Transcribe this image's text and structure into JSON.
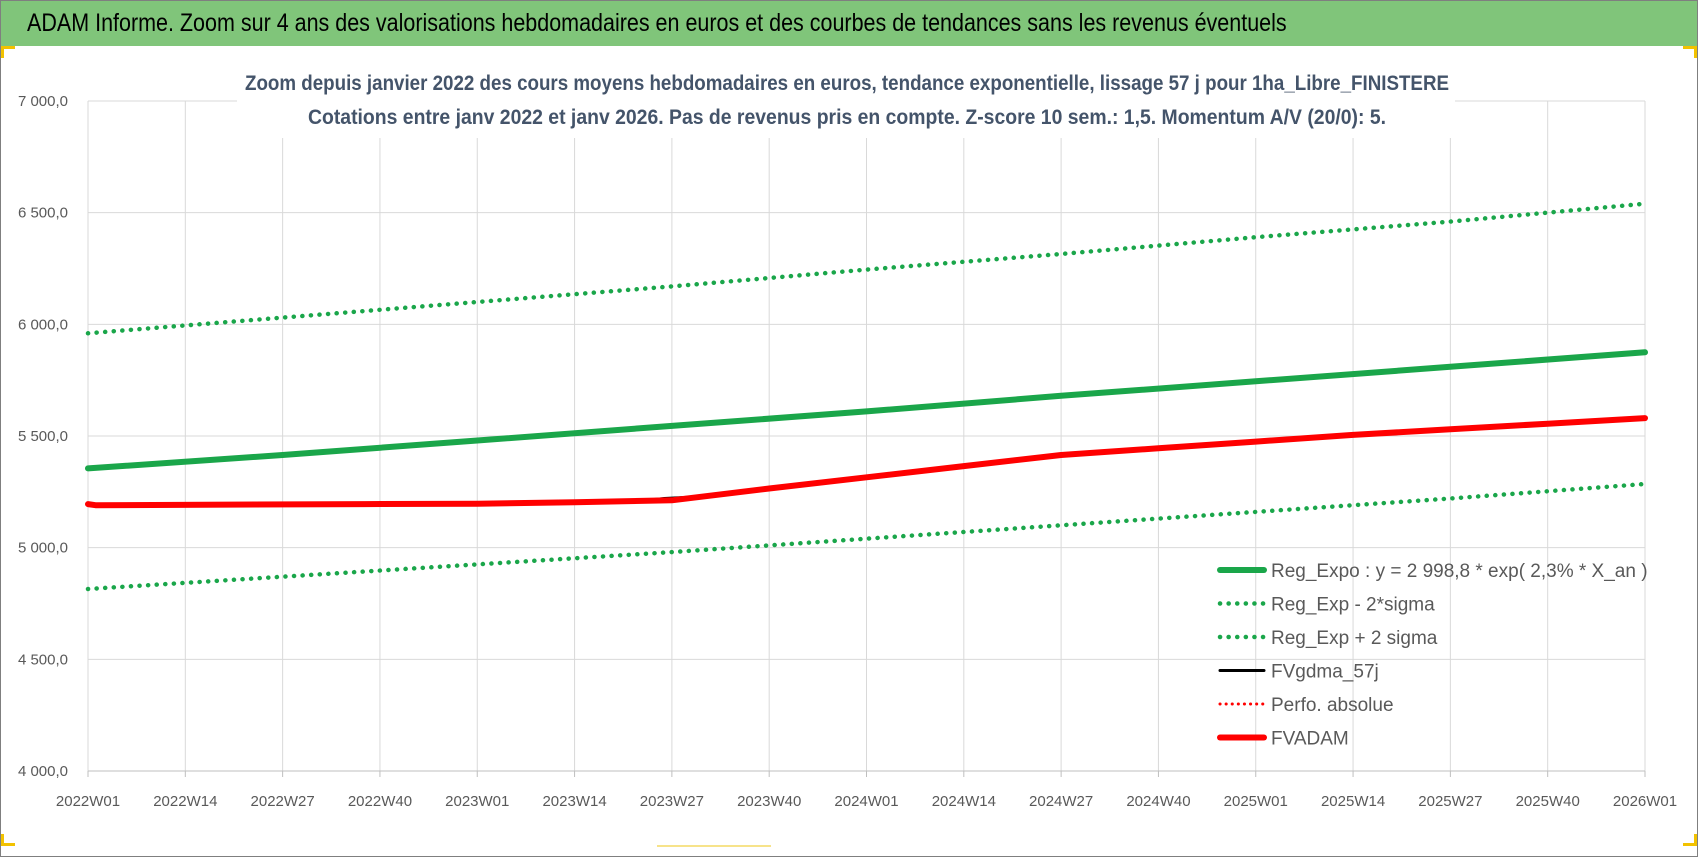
{
  "header": {
    "title": "ADAM Informe. Zoom sur 4 ans des valorisations hebdomadaires en euros et des courbes de tendances sans les revenus éventuels"
  },
  "colors": {
    "header_bg": "#80c57a",
    "reg_expo": "#1aa64a",
    "bands": "#1aa64a",
    "fvgdma": "#000000",
    "perfo": "#ff0000",
    "fvadam": "#ff0000",
    "corner_accent": "#f2c200"
  },
  "chart_data": {
    "type": "line",
    "title_lines": [
      "Zoom depuis janvier 2022 des cours moyens hebdomadaires en euros, tendance exponentielle, lissage 57 j pour 1ha_Libre_FINISTERE",
      "Cotations entre janv 2022 et janv 2026. Pas de revenus pris en compte. Z-score 10 sem.: 1,5. Momentum A/V (20/0): 5."
    ],
    "ylim": [
      4000,
      7000
    ],
    "y_ticks": [
      "7 000,0",
      "6 500,0",
      "6 000,0",
      "5 500,0",
      "5 000,0",
      "4 500,0",
      "4 000,0"
    ],
    "y_tick_values": [
      7000,
      6500,
      6000,
      5500,
      5000,
      4500,
      4000
    ],
    "x_ticks": [
      "2022W01",
      "2022W14",
      "2022W27",
      "2022W40",
      "2023W01",
      "2023W14",
      "2023W27",
      "2023W40",
      "2024W01",
      "2024W14",
      "2024W27",
      "2024W40",
      "2025W01",
      "2025W14",
      "2025W27",
      "2025W40",
      "2026W01"
    ],
    "grid": true,
    "legend_position": "bottom-right",
    "series": [
      {
        "name": "Reg_Expo : y = 2 998,8 * exp( 2,3% *  X_an )",
        "style": "solid-thick",
        "color": "#1aa64a",
        "x": [
          "2022W01",
          "2022W27",
          "2023W01",
          "2023W27",
          "2024W01",
          "2024W27",
          "2025W01",
          "2025W27",
          "2026W01"
        ],
        "values": [
          5355,
          5415,
          5480,
          5545,
          5610,
          5680,
          5745,
          5810,
          5875
        ]
      },
      {
        "name": "Reg_Exp - 2*sigma",
        "style": "dotted",
        "color": "#1aa64a",
        "x": [
          "2022W01",
          "2022W27",
          "2023W01",
          "2023W27",
          "2024W01",
          "2024W27",
          "2025W01",
          "2025W27",
          "2026W01"
        ],
        "values": [
          4815,
          4870,
          4925,
          4980,
          5040,
          5100,
          5160,
          5220,
          5285
        ]
      },
      {
        "name": "Reg_Exp + 2 sigma",
        "style": "dotted",
        "color": "#1aa64a",
        "x": [
          "2022W01",
          "2022W27",
          "2023W01",
          "2023W27",
          "2024W01",
          "2024W27",
          "2025W01",
          "2025W27",
          "2026W01"
        ],
        "values": [
          5960,
          6030,
          6100,
          6170,
          6245,
          6315,
          6390,
          6460,
          6540
        ]
      },
      {
        "name": "FVgdma_57j",
        "style": "solid",
        "color": "#000000",
        "x": [
          "2023W23",
          "2023W26",
          "2023W29"
        ],
        "values": [
          5210,
          5220,
          5225
        ]
      },
      {
        "name": "Perfo. absolue",
        "style": "dotted-thin",
        "color": "#ff0000",
        "x": [],
        "values": []
      },
      {
        "name": "FVADAM",
        "style": "solid-thick",
        "color": "#ff0000",
        "x": [
          "2022W01",
          "2022W02",
          "2022W38",
          "2023W01",
          "2023W14",
          "2023W27",
          "2023W40",
          "2024W01",
          "2024W14",
          "2024W27",
          "2024W40",
          "2025W01",
          "2025W14",
          "2025W27",
          "2025W40",
          "2026W01"
        ],
        "values": [
          5195,
          5190,
          5195,
          5197,
          5203,
          5212,
          5265,
          5315,
          5365,
          5415,
          5445,
          5475,
          5505,
          5530,
          5555,
          5580
        ]
      }
    ]
  }
}
